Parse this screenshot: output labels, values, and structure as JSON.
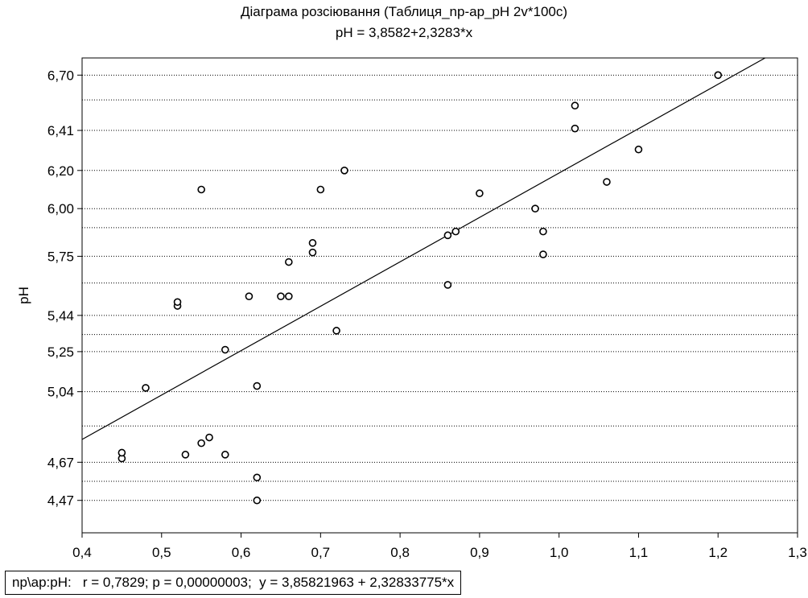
{
  "chart_data": {
    "type": "scatter",
    "title": "Діаграма розсіювання (Таблиця_np-ap_pH 2v*100c)",
    "subtitle": "pH = 3,8582+2,3283*x",
    "xlabel": "",
    "ylabel": "pH",
    "xlim": [
      0.4,
      1.3
    ],
    "ylim": [
      4.3,
      6.79
    ],
    "x_ticks": [
      {
        "value": 0.4,
        "label": "0,4"
      },
      {
        "value": 0.5,
        "label": "0,5"
      },
      {
        "value": 0.6,
        "label": "0,6"
      },
      {
        "value": 0.7,
        "label": "0,7"
      },
      {
        "value": 0.8,
        "label": "0,8"
      },
      {
        "value": 0.9,
        "label": "0,9"
      },
      {
        "value": 1.0,
        "label": "1,0"
      },
      {
        "value": 1.1,
        "label": "1,1"
      },
      {
        "value": 1.2,
        "label": "1,2"
      },
      {
        "value": 1.3,
        "label": "1,3"
      }
    ],
    "y_ticks": [
      {
        "value": 4.47,
        "label": "4,47"
      },
      {
        "value": 4.67,
        "label": "4,67"
      },
      {
        "value": 5.04,
        "label": "5,04"
      },
      {
        "value": 5.25,
        "label": "5,25"
      },
      {
        "value": 5.44,
        "label": "5,44"
      },
      {
        "value": 5.75,
        "label": "5,75"
      },
      {
        "value": 6.0,
        "label": "6,00"
      },
      {
        "value": 6.2,
        "label": "6,20"
      },
      {
        "value": 6.41,
        "label": "6,41"
      },
      {
        "value": 6.7,
        "label": "6,70"
      }
    ],
    "y_gridlines": [
      4.47,
      4.57,
      4.67,
      4.86,
      5.04,
      5.25,
      5.34,
      5.44,
      5.61,
      5.75,
      5.9,
      6.0,
      6.2,
      6.41,
      6.57,
      6.7
    ],
    "grid": "horizontal dotted",
    "regression": {
      "intercept": 3.8582,
      "slope": 2.3283
    },
    "points": [
      {
        "x": 0.45,
        "y": 4.69
      },
      {
        "x": 0.45,
        "y": 4.72
      },
      {
        "x": 0.48,
        "y": 5.06
      },
      {
        "x": 0.52,
        "y": 5.49
      },
      {
        "x": 0.52,
        "y": 5.51
      },
      {
        "x": 0.53,
        "y": 4.71
      },
      {
        "x": 0.55,
        "y": 4.77
      },
      {
        "x": 0.55,
        "y": 6.1
      },
      {
        "x": 0.56,
        "y": 4.8
      },
      {
        "x": 0.58,
        "y": 4.71
      },
      {
        "x": 0.58,
        "y": 5.26
      },
      {
        "x": 0.61,
        "y": 5.54
      },
      {
        "x": 0.62,
        "y": 4.47
      },
      {
        "x": 0.62,
        "y": 4.59
      },
      {
        "x": 0.62,
        "y": 5.07
      },
      {
        "x": 0.65,
        "y": 5.54
      },
      {
        "x": 0.66,
        "y": 5.54
      },
      {
        "x": 0.66,
        "y": 5.72
      },
      {
        "x": 0.69,
        "y": 5.77
      },
      {
        "x": 0.69,
        "y": 5.82
      },
      {
        "x": 0.7,
        "y": 6.1
      },
      {
        "x": 0.72,
        "y": 5.36
      },
      {
        "x": 0.73,
        "y": 6.2
      },
      {
        "x": 0.86,
        "y": 5.6
      },
      {
        "x": 0.86,
        "y": 5.86
      },
      {
        "x": 0.87,
        "y": 5.88
      },
      {
        "x": 0.9,
        "y": 6.08
      },
      {
        "x": 0.97,
        "y": 6.0
      },
      {
        "x": 0.98,
        "y": 5.76
      },
      {
        "x": 0.98,
        "y": 5.88
      },
      {
        "x": 1.02,
        "y": 6.42
      },
      {
        "x": 1.02,
        "y": 6.54
      },
      {
        "x": 1.06,
        "y": 6.14
      },
      {
        "x": 1.1,
        "y": 6.31
      },
      {
        "x": 1.2,
        "y": 6.7
      }
    ],
    "footer": "np\\ap:pH:   r = 0,7829; p = 0,00000003;  y = 3,85821963 + 2,32833775*x"
  }
}
